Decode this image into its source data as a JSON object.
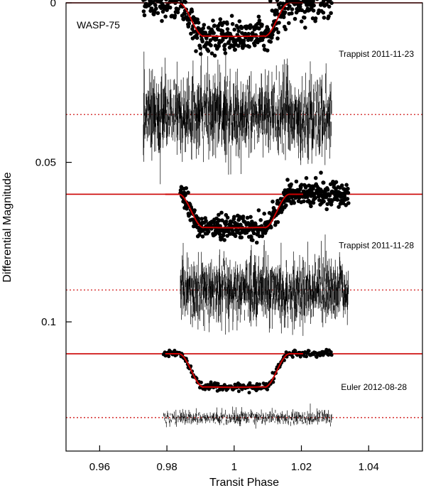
{
  "chart_data": {
    "type": "scatter",
    "title": "WASP-75",
    "xlabel": "Transit Phase",
    "ylabel": "Differential Magnitude",
    "xlim": [
      0.95,
      1.056
    ],
    "ylim": [
      0.0,
      0.1405
    ],
    "y_inverted": true,
    "x_ticks": [
      0.96,
      0.98,
      1.0,
      1.02,
      1.04
    ],
    "x_tick_labels": [
      "0.96",
      "0.98",
      "1",
      "1.02",
      "1.04"
    ],
    "y_ticks": [
      0.0,
      0.05,
      0.1
    ],
    "y_tick_labels": [
      "0",
      "0.05",
      "0.1"
    ],
    "grid": false,
    "colors": {
      "data": "#000000",
      "model": "#cc0000",
      "residual_zero": "#cc0000"
    },
    "series": [
      {
        "name": "Trappist 2011-11-23",
        "baseline": 0.0,
        "residual_offset": 0.035,
        "x_range": [
          0.973,
          1.029
        ],
        "depth": 0.0105,
        "transit_start": 0.9835,
        "transit_end": 1.0165,
        "ingress": 0.0075,
        "scatter": 0.0028,
        "residual_scatter": 0.0045
      },
      {
        "name": "Trappist 2011-11-28",
        "baseline": 0.06,
        "residual_offset": 0.09,
        "x_range": [
          0.984,
          1.034
        ],
        "depth": 0.0105,
        "transit_start": 0.9835,
        "transit_end": 1.0165,
        "ingress": 0.0075,
        "scatter": 0.0018,
        "residual_scatter": 0.0035
      },
      {
        "name": "Euler 2012-08-28",
        "baseline": 0.11,
        "residual_offset": 0.13,
        "x_range": [
          0.979,
          1.029
        ],
        "depth": 0.0105,
        "transit_start": 0.9835,
        "transit_end": 1.0165,
        "ingress": 0.0075,
        "scatter": 0.0006,
        "residual_scatter": 0.0008
      }
    ]
  }
}
